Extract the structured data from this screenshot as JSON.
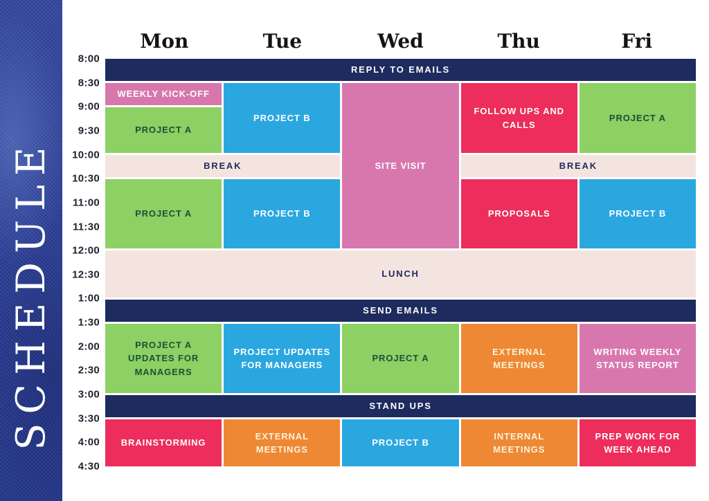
{
  "title": "SCHEDULE",
  "days": [
    "Mon",
    "Tue",
    "Wed",
    "Thu",
    "Fri"
  ],
  "times": [
    "8:00",
    "8:30",
    "9:00",
    "9:30",
    "10:00",
    "10:30",
    "11:00",
    "11:30",
    "12:00",
    "12:30",
    "1:00",
    "1:30",
    "2:00",
    "2:30",
    "3:00",
    "3:30",
    "4:00",
    "4:30"
  ],
  "colors": {
    "navy": "#1e2b5e",
    "green": "#8dd063",
    "blue": "#2ba7e0",
    "pink": "#d877ae",
    "red": "#ed2d5b",
    "orange": "#ee8834",
    "cream": "#f4e4e0",
    "sidebar_blue": "#2c3f96",
    "text_white": "#ffffff",
    "text_dark_green": "#175239",
    "text_navy": "#1e2b5e",
    "text_cream": "#fcf3da",
    "day_text": "#141414",
    "time_text": "#20242e"
  },
  "blocks": [
    {
      "label": "REPLY TO EMAILS",
      "row": 1,
      "rowspan": 1,
      "col": 1,
      "colspan": 5,
      "bg": "navy",
      "fg": "white",
      "band": true
    },
    {
      "label": "WEEKLY KICK-OFF",
      "row": 2,
      "rowspan": 1,
      "col": 1,
      "colspan": 1,
      "bg": "pink",
      "fg": "white"
    },
    {
      "label": "PROJECT A",
      "row": 3,
      "rowspan": 1,
      "col": 1,
      "colspan": 1,
      "bg": "green",
      "fg": "darkgreen"
    },
    {
      "label": "PROJECT B",
      "row": 2,
      "rowspan": 2,
      "col": 2,
      "colspan": 1,
      "bg": "blue",
      "fg": "white"
    },
    {
      "label": "SITE VISIT",
      "row": 2,
      "rowspan": 4,
      "col": 3,
      "colspan": 1,
      "bg": "pink",
      "fg": "white"
    },
    {
      "label": "FOLLOW UPS AND CALLS",
      "row": 2,
      "rowspan": 2,
      "col": 4,
      "colspan": 1,
      "bg": "red",
      "fg": "white"
    },
    {
      "label": "PROJECT A",
      "row": 2,
      "rowspan": 2,
      "col": 5,
      "colspan": 1,
      "bg": "green",
      "fg": "darkgreen"
    },
    {
      "label": "BREAK",
      "row": 4,
      "rowspan": 1,
      "col": 1,
      "colspan": 2,
      "bg": "cream",
      "fg": "navy",
      "band": true
    },
    {
      "label": "BREAK",
      "row": 4,
      "rowspan": 1,
      "col": 4,
      "colspan": 2,
      "bg": "cream",
      "fg": "navy",
      "band": true
    },
    {
      "label": "PROJECT A",
      "row": 5,
      "rowspan": 1,
      "col": 1,
      "colspan": 1,
      "bg": "green",
      "fg": "darkgreen"
    },
    {
      "label": "PROJECT B",
      "row": 5,
      "rowspan": 1,
      "col": 2,
      "colspan": 1,
      "bg": "blue",
      "fg": "white"
    },
    {
      "label": "PROPOSALS",
      "row": 5,
      "rowspan": 1,
      "col": 4,
      "colspan": 1,
      "bg": "red",
      "fg": "white"
    },
    {
      "label": "PROJECT B",
      "row": 5,
      "rowspan": 1,
      "col": 5,
      "colspan": 1,
      "bg": "blue",
      "fg": "white"
    },
    {
      "label": "LUNCH",
      "row": 6,
      "rowspan": 1,
      "col": 1,
      "colspan": 5,
      "bg": "cream",
      "fg": "navy",
      "band": true
    },
    {
      "label": "SEND EMAILS",
      "row": 7,
      "rowspan": 1,
      "col": 1,
      "colspan": 5,
      "bg": "navy",
      "fg": "white",
      "band": true
    },
    {
      "label": "PROJECT A UPDATES FOR MANAGERS",
      "row": 8,
      "rowspan": 1,
      "col": 1,
      "colspan": 1,
      "bg": "green",
      "fg": "darkgreen"
    },
    {
      "label": "PROJECT UPDATES FOR MANAGERS",
      "row": 8,
      "rowspan": 1,
      "col": 2,
      "colspan": 1,
      "bg": "blue",
      "fg": "white"
    },
    {
      "label": "PROJECT A",
      "row": 8,
      "rowspan": 1,
      "col": 3,
      "colspan": 1,
      "bg": "green",
      "fg": "darkgreen"
    },
    {
      "label": "EXTERNAL MEETINGS",
      "row": 8,
      "rowspan": 1,
      "col": 4,
      "colspan": 1,
      "bg": "orange",
      "fg": "cream"
    },
    {
      "label": "WRITING WEEKLY STATUS REPORT",
      "row": 8,
      "rowspan": 1,
      "col": 5,
      "colspan": 1,
      "bg": "pink",
      "fg": "white"
    },
    {
      "label": "STAND UPS",
      "row": 9,
      "rowspan": 1,
      "col": 1,
      "colspan": 5,
      "bg": "navy",
      "fg": "white",
      "band": true
    },
    {
      "label": "BRAINSTORMING",
      "row": 10,
      "rowspan": 1,
      "col": 1,
      "colspan": 1,
      "bg": "red",
      "fg": "white"
    },
    {
      "label": "EXTERNAL MEETINGS",
      "row": 10,
      "rowspan": 1,
      "col": 2,
      "colspan": 1,
      "bg": "orange",
      "fg": "cream"
    },
    {
      "label": "PROJECT B",
      "row": 10,
      "rowspan": 1,
      "col": 3,
      "colspan": 1,
      "bg": "blue",
      "fg": "white"
    },
    {
      "label": "INTERNAL MEETINGS",
      "row": 10,
      "rowspan": 1,
      "col": 4,
      "colspan": 1,
      "bg": "orange",
      "fg": "cream"
    },
    {
      "label": "PREP WORK FOR WEEK AHEAD",
      "row": 10,
      "rowspan": 1,
      "col": 5,
      "colspan": 1,
      "bg": "red",
      "fg": "white"
    }
  ]
}
